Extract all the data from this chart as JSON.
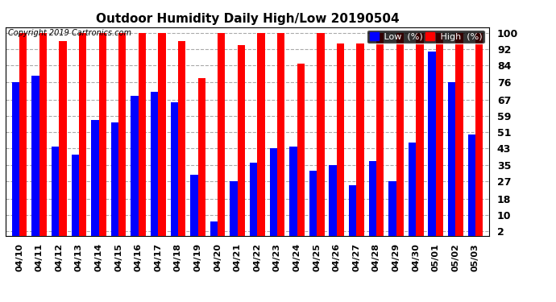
{
  "title": "Outdoor Humidity Daily High/Low 20190504",
  "copyright": "Copyright 2019 Cartronics.com",
  "categories": [
    "04/10",
    "04/11",
    "04/12",
    "04/13",
    "04/14",
    "04/15",
    "04/16",
    "04/17",
    "04/18",
    "04/19",
    "04/20",
    "04/21",
    "04/22",
    "04/23",
    "04/24",
    "04/25",
    "04/26",
    "04/27",
    "04/28",
    "04/29",
    "04/30",
    "05/01",
    "05/02",
    "05/03"
  ],
  "high_values": [
    100,
    100,
    96,
    100,
    100,
    100,
    100,
    100,
    96,
    78,
    100,
    94,
    100,
    100,
    85,
    100,
    95,
    95,
    100,
    100,
    100,
    100,
    100,
    100
  ],
  "low_values": [
    76,
    79,
    44,
    40,
    57,
    56,
    69,
    71,
    66,
    30,
    7,
    27,
    36,
    43,
    44,
    32,
    35,
    25,
    37,
    27,
    46,
    91,
    76,
    50
  ],
  "high_color": "#ff0000",
  "low_color": "#0000ff",
  "bg_color": "#ffffff",
  "grid_color": "#aaaaaa",
  "yticks": [
    2,
    10,
    18,
    27,
    35,
    43,
    51,
    59,
    67,
    76,
    84,
    92,
    100
  ],
  "ymin": 0,
  "ymax": 103,
  "bar_width": 0.38
}
